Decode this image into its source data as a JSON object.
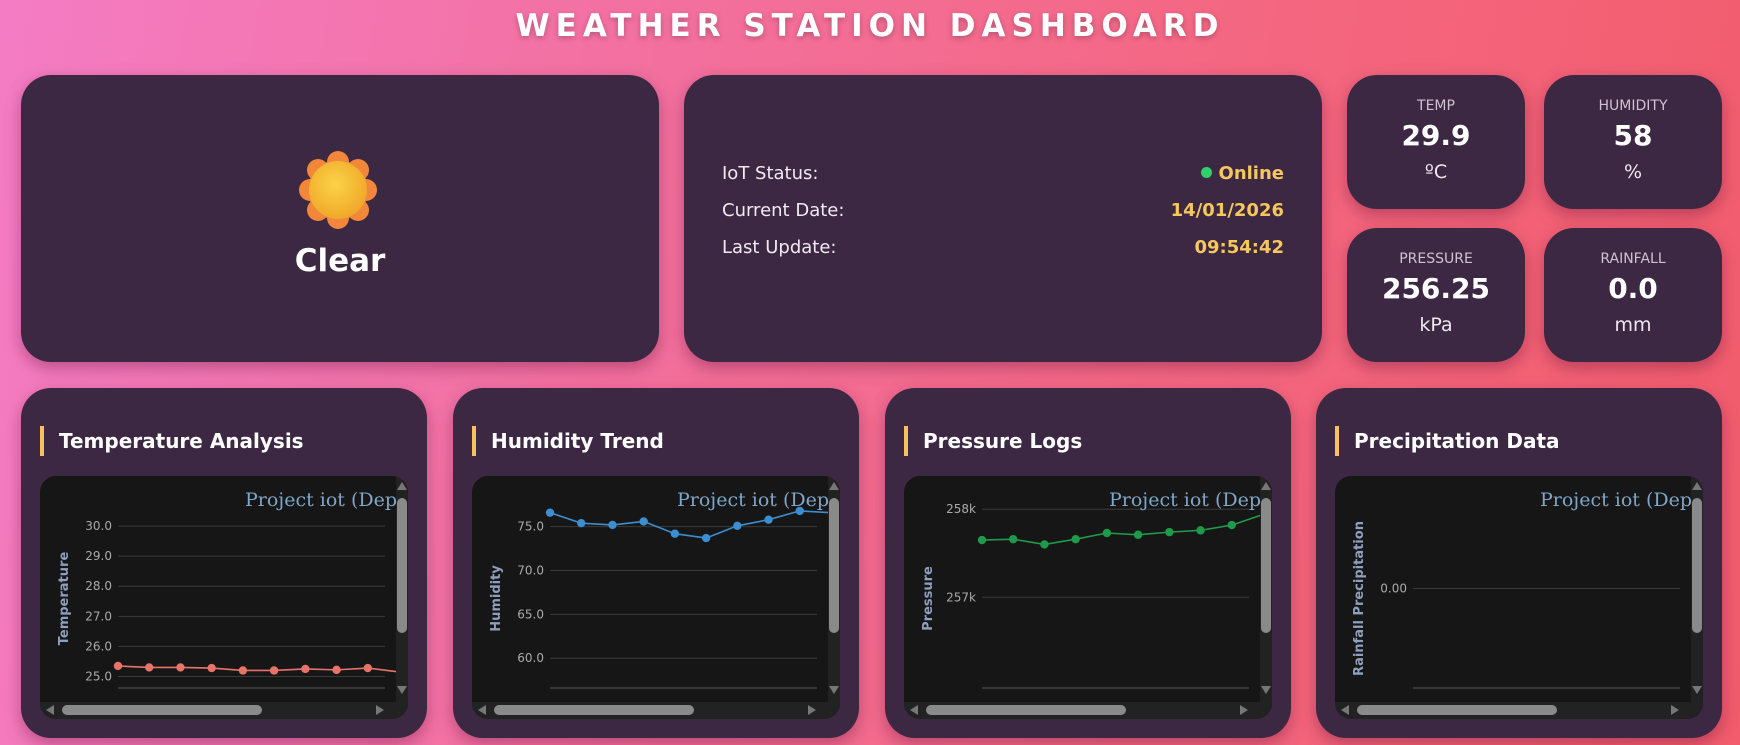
{
  "header": {
    "title": "WEATHER STATION DASHBOARD"
  },
  "weather": {
    "condition": "Clear",
    "icon": "sun-icon"
  },
  "status": {
    "rows": [
      {
        "label": "IoT Status:",
        "value": "Online"
      },
      {
        "label": "Current Date:",
        "value": "14/01/2026"
      },
      {
        "label": "Last Update:",
        "value": "09:54:42"
      }
    ],
    "online_color": "#32d06a"
  },
  "metrics": [
    {
      "label": "TEMP",
      "value": "29.9",
      "unit": "ºC"
    },
    {
      "label": "HUMIDITY",
      "value": "58",
      "unit": "%"
    },
    {
      "label": "PRESSURE",
      "value": "256.25",
      "unit": "kPa"
    },
    {
      "label": "RAINFALL",
      "value": "0.0",
      "unit": "mm"
    }
  ],
  "charts": [
    {
      "card_title": "Temperature Analysis",
      "plot_title": "Project iot (Dep"
    },
    {
      "card_title": "Humidity Trend",
      "plot_title": "Project iot (Dep"
    },
    {
      "card_title": "Pressure Logs",
      "plot_title": "Project iot (Dep"
    },
    {
      "card_title": "Precipitation Data",
      "plot_title": "Project iot (Dep"
    }
  ],
  "chart_data": [
    {
      "type": "line",
      "ylabel": "Temperature",
      "color": "#e8736b",
      "yticks": [
        "30.0",
        "29.0",
        "28.0",
        "27.0",
        "26.0",
        "25.0"
      ],
      "ylim": [
        24.85,
        31.0
      ],
      "values": [
        25.35,
        25.3,
        25.3,
        25.28,
        25.2,
        25.2,
        25.25,
        25.22,
        25.28,
        25.15
      ]
    },
    {
      "type": "line",
      "ylabel": "Humidity",
      "color": "#3d8ed0",
      "yticks": [
        "75.0",
        "70.0",
        "65.0",
        "60.0"
      ],
      "ylim": [
        57.4,
        78.5
      ],
      "values": [
        76.6,
        75.4,
        75.2,
        75.6,
        74.2,
        73.7,
        75.1,
        75.8,
        76.8,
        76.6
      ]
    },
    {
      "type": "line",
      "ylabel": "Pressure",
      "color": "#1f9a4a",
      "yticks": [
        "258k",
        "257k"
      ],
      "ylim": [
        256050,
        258150
      ],
      "values": [
        257650,
        257660,
        257600,
        257660,
        257730,
        257710,
        257740,
        257760,
        257820,
        257940
      ]
    },
    {
      "type": "line",
      "ylabel": "Rainfall Precipitation",
      "color": "#e3a33b",
      "yticks": [
        "0.00"
      ],
      "ylim": [
        -1,
        1
      ],
      "values": []
    }
  ]
}
